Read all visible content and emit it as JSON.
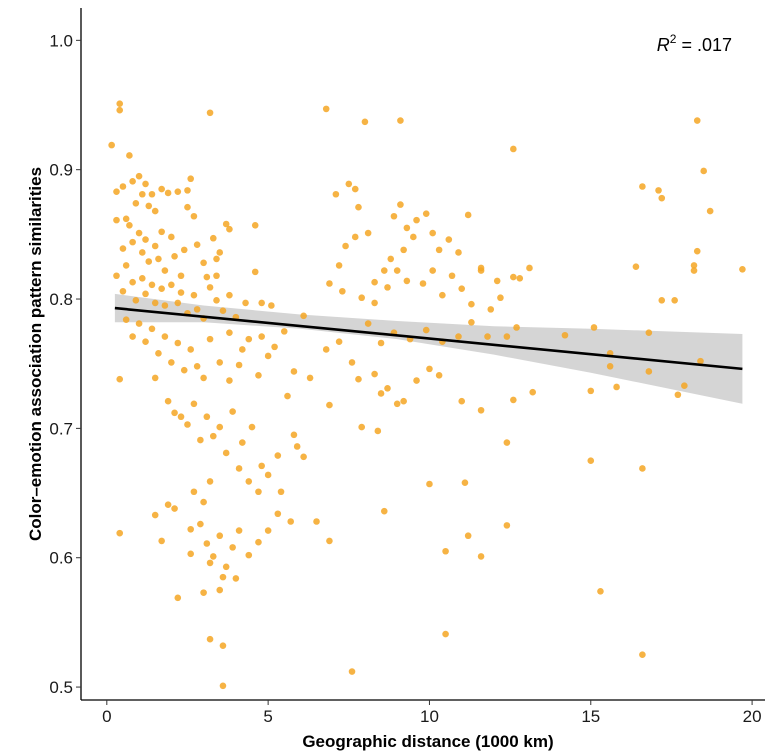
{
  "chart_data": {
    "type": "scatter",
    "xlabel": "Geographic distance (1000 km)",
    "ylabel": "Color–emotion association pattern similarities",
    "xlim": [
      -0.8,
      20.4
    ],
    "ylim": [
      0.49,
      1.025
    ],
    "xticks": [
      0,
      5,
      10,
      15,
      20
    ],
    "xtick_labels": [
      "0",
      "5",
      "10",
      "15",
      "20"
    ],
    "yticks": [
      0.5,
      0.6,
      0.7,
      0.8,
      0.9,
      1.0
    ],
    "ytick_labels": [
      "0.5",
      "0.6",
      "0.7",
      "0.8",
      "0.9",
      "1.0"
    ],
    "annotation": {
      "symbol": "R",
      "superscript": "2",
      "text": " = .017"
    },
    "point_color": "#f5a623",
    "regression": {
      "x": [
        0.25,
        19.7
      ],
      "y": [
        0.793,
        0.746
      ],
      "color": "#000000",
      "ci_color": "#bebebe",
      "ci": [
        {
          "x": 0.25,
          "lo": 0.782,
          "hi": 0.804
        },
        {
          "x": 3.0,
          "lo": 0.782,
          "hi": 0.795
        },
        {
          "x": 6.0,
          "lo": 0.777,
          "hi": 0.788
        },
        {
          "x": 9.0,
          "lo": 0.769,
          "hi": 0.783
        },
        {
          "x": 12.0,
          "lo": 0.757,
          "hi": 0.779
        },
        {
          "x": 15.0,
          "lo": 0.743,
          "hi": 0.777
        },
        {
          "x": 19.7,
          "lo": 0.719,
          "hi": 0.773
        }
      ]
    },
    "grid": false,
    "points": [
      [
        0.15,
        0.919
      ],
      [
        0.4,
        0.951
      ],
      [
        0.4,
        0.946
      ],
      [
        0.7,
        0.911
      ],
      [
        0.3,
        0.883
      ],
      [
        0.5,
        0.887
      ],
      [
        0.6,
        0.862
      ],
      [
        0.3,
        0.861
      ],
      [
        0.8,
        0.891
      ],
      [
        0.9,
        0.874
      ],
      [
        1.0,
        0.895
      ],
      [
        1.1,
        0.881
      ],
      [
        1.2,
        0.889
      ],
      [
        1.3,
        0.872
      ],
      [
        1.4,
        0.881
      ],
      [
        1.5,
        0.868
      ],
      [
        1.7,
        0.885
      ],
      [
        1.9,
        0.882
      ],
      [
        2.2,
        0.883
      ],
      [
        2.6,
        0.893
      ],
      [
        2.5,
        0.871
      ],
      [
        0.5,
        0.839
      ],
      [
        0.7,
        0.857
      ],
      [
        0.8,
        0.844
      ],
      [
        1.0,
        0.851
      ],
      [
        1.1,
        0.836
      ],
      [
        1.2,
        0.846
      ],
      [
        1.3,
        0.829
      ],
      [
        1.5,
        0.841
      ],
      [
        1.6,
        0.831
      ],
      [
        1.7,
        0.852
      ],
      [
        1.8,
        0.822
      ],
      [
        2.0,
        0.848
      ],
      [
        2.1,
        0.833
      ],
      [
        2.3,
        0.818
      ],
      [
        2.4,
        0.838
      ],
      [
        2.7,
        0.864
      ],
      [
        2.8,
        0.842
      ],
      [
        3.0,
        0.828
      ],
      [
        3.1,
        0.817
      ],
      [
        3.3,
        0.847
      ],
      [
        3.5,
        0.836
      ],
      [
        3.7,
        0.858
      ],
      [
        3.4,
        0.818
      ],
      [
        0.3,
        0.818
      ],
      [
        0.5,
        0.806
      ],
      [
        0.6,
        0.826
      ],
      [
        0.8,
        0.813
      ],
      [
        0.9,
        0.799
      ],
      [
        1.1,
        0.816
      ],
      [
        1.2,
        0.804
      ],
      [
        1.4,
        0.811
      ],
      [
        1.5,
        0.797
      ],
      [
        1.7,
        0.808
      ],
      [
        1.8,
        0.795
      ],
      [
        2.0,
        0.811
      ],
      [
        2.2,
        0.797
      ],
      [
        2.3,
        0.805
      ],
      [
        2.5,
        0.789
      ],
      [
        2.7,
        0.803
      ],
      [
        2.8,
        0.792
      ],
      [
        3.0,
        0.785
      ],
      [
        3.2,
        0.809
      ],
      [
        3.4,
        0.799
      ],
      [
        3.6,
        0.791
      ],
      [
        3.8,
        0.803
      ],
      [
        4.0,
        0.786
      ],
      [
        4.3,
        0.797
      ],
      [
        4.6,
        0.821
      ],
      [
        4.8,
        0.797
      ],
      [
        5.1,
        0.795
      ],
      [
        0.6,
        0.784
      ],
      [
        0.8,
        0.771
      ],
      [
        1.0,
        0.781
      ],
      [
        1.2,
        0.767
      ],
      [
        1.4,
        0.777
      ],
      [
        1.6,
        0.758
      ],
      [
        1.8,
        0.771
      ],
      [
        2.0,
        0.751
      ],
      [
        2.2,
        0.766
      ],
      [
        2.4,
        0.745
      ],
      [
        2.6,
        0.761
      ],
      [
        2.8,
        0.748
      ],
      [
        3.0,
        0.739
      ],
      [
        3.2,
        0.769
      ],
      [
        3.5,
        0.751
      ],
      [
        3.8,
        0.737
      ],
      [
        4.1,
        0.749
      ],
      [
        4.4,
        0.769
      ],
      [
        4.7,
        0.741
      ],
      [
        5.0,
        0.756
      ],
      [
        0.4,
        0.738
      ],
      [
        1.5,
        0.739
      ],
      [
        1.9,
        0.721
      ],
      [
        2.1,
        0.712
      ],
      [
        2.3,
        0.709
      ],
      [
        2.5,
        0.703
      ],
      [
        2.7,
        0.719
      ],
      [
        2.9,
        0.691
      ],
      [
        3.1,
        0.709
      ],
      [
        3.3,
        0.694
      ],
      [
        3.5,
        0.701
      ],
      [
        3.7,
        0.681
      ],
      [
        3.9,
        0.713
      ],
      [
        4.2,
        0.689
      ],
      [
        4.5,
        0.701
      ],
      [
        4.8,
        0.671
      ],
      [
        5.3,
        0.679
      ],
      [
        5.6,
        0.725
      ],
      [
        5.8,
        0.695
      ],
      [
        5.9,
        0.686
      ],
      [
        6.1,
        0.678
      ],
      [
        4.1,
        0.669
      ],
      [
        4.4,
        0.659
      ],
      [
        4.7,
        0.651
      ],
      [
        5.0,
        0.664
      ],
      [
        5.4,
        0.651
      ],
      [
        2.7,
        0.651
      ],
      [
        3.0,
        0.643
      ],
      [
        3.2,
        0.659
      ],
      [
        1.9,
        0.641
      ],
      [
        2.1,
        0.638
      ],
      [
        1.5,
        0.633
      ],
      [
        2.6,
        0.622
      ],
      [
        2.9,
        0.626
      ],
      [
        3.1,
        0.611
      ],
      [
        3.3,
        0.601
      ],
      [
        3.5,
        0.617
      ],
      [
        3.7,
        0.593
      ],
      [
        3.9,
        0.608
      ],
      [
        4.1,
        0.621
      ],
      [
        4.4,
        0.602
      ],
      [
        4.7,
        0.612
      ],
      [
        5.0,
        0.621
      ],
      [
        5.3,
        0.634
      ],
      [
        5.7,
        0.628
      ],
      [
        6.5,
        0.628
      ],
      [
        6.9,
        0.613
      ],
      [
        1.7,
        0.613
      ],
      [
        3.2,
        0.596
      ],
      [
        2.6,
        0.603
      ],
      [
        3.5,
        0.575
      ],
      [
        2.2,
        0.569
      ],
      [
        3.6,
        0.585
      ],
      [
        4.0,
        0.584
      ],
      [
        3.0,
        0.573
      ],
      [
        3.2,
        0.537
      ],
      [
        3.6,
        0.532
      ],
      [
        3.6,
        0.501
      ],
      [
        0.4,
        0.619
      ],
      [
        3.2,
        0.944
      ],
      [
        2.5,
        0.884
      ],
      [
        6.8,
        0.947
      ],
      [
        8.0,
        0.937
      ],
      [
        9.1,
        0.938
      ],
      [
        7.5,
        0.889
      ],
      [
        7.1,
        0.881
      ],
      [
        7.7,
        0.885
      ],
      [
        7.8,
        0.871
      ],
      [
        8.1,
        0.851
      ],
      [
        8.9,
        0.864
      ],
      [
        9.1,
        0.873
      ],
      [
        9.3,
        0.855
      ],
      [
        9.6,
        0.861
      ],
      [
        9.5,
        0.848
      ],
      [
        9.9,
        0.866
      ],
      [
        10.1,
        0.851
      ],
      [
        10.3,
        0.838
      ],
      [
        10.6,
        0.846
      ],
      [
        10.9,
        0.836
      ],
      [
        9.2,
        0.838
      ],
      [
        8.8,
        0.831
      ],
      [
        8.6,
        0.822
      ],
      [
        9.0,
        0.822
      ],
      [
        8.3,
        0.813
      ],
      [
        7.7,
        0.848
      ],
      [
        7.4,
        0.841
      ],
      [
        7.2,
        0.826
      ],
      [
        6.9,
        0.812
      ],
      [
        7.3,
        0.806
      ],
      [
        7.9,
        0.801
      ],
      [
        8.3,
        0.797
      ],
      [
        8.7,
        0.809
      ],
      [
        9.3,
        0.814
      ],
      [
        9.8,
        0.812
      ],
      [
        10.1,
        0.822
      ],
      [
        10.4,
        0.803
      ],
      [
        10.7,
        0.818
      ],
      [
        11.0,
        0.808
      ],
      [
        11.3,
        0.796
      ],
      [
        11.6,
        0.822
      ],
      [
        11.9,
        0.792
      ],
      [
        12.2,
        0.801
      ],
      [
        12.6,
        0.817
      ],
      [
        13.1,
        0.824
      ],
      [
        12.7,
        0.778
      ],
      [
        12.4,
        0.771
      ],
      [
        11.8,
        0.771
      ],
      [
        11.3,
        0.782
      ],
      [
        10.9,
        0.771
      ],
      [
        10.4,
        0.767
      ],
      [
        9.9,
        0.776
      ],
      [
        9.4,
        0.769
      ],
      [
        8.9,
        0.774
      ],
      [
        8.5,
        0.766
      ],
      [
        8.1,
        0.781
      ],
      [
        7.6,
        0.751
      ],
      [
        7.2,
        0.767
      ],
      [
        6.8,
        0.761
      ],
      [
        8.3,
        0.742
      ],
      [
        8.7,
        0.731
      ],
      [
        9.2,
        0.721
      ],
      [
        9.6,
        0.737
      ],
      [
        10.0,
        0.746
      ],
      [
        10.3,
        0.741
      ],
      [
        9.0,
        0.719
      ],
      [
        8.5,
        0.727
      ],
      [
        6.9,
        0.718
      ],
      [
        7.8,
        0.738
      ],
      [
        11.6,
        0.714
      ],
      [
        12.6,
        0.722
      ],
      [
        13.2,
        0.728
      ],
      [
        11.0,
        0.721
      ],
      [
        12.4,
        0.689
      ],
      [
        8.4,
        0.698
      ],
      [
        7.9,
        0.701
      ],
      [
        10.0,
        0.657
      ],
      [
        11.1,
        0.658
      ],
      [
        8.6,
        0.636
      ],
      [
        11.2,
        0.617
      ],
      [
        10.5,
        0.605
      ],
      [
        11.6,
        0.601
      ],
      [
        12.4,
        0.625
      ],
      [
        10.5,
        0.541
      ],
      [
        7.6,
        0.512
      ],
      [
        12.6,
        0.916
      ],
      [
        11.2,
        0.865
      ],
      [
        11.6,
        0.824
      ],
      [
        12.1,
        0.814
      ],
      [
        12.8,
        0.816
      ],
      [
        15.1,
        0.778
      ],
      [
        15.6,
        0.758
      ],
      [
        14.2,
        0.772
      ],
      [
        15.6,
        0.748
      ],
      [
        15.8,
        0.732
      ],
      [
        15.0,
        0.729
      ],
      [
        16.4,
        0.825
      ],
      [
        16.6,
        0.887
      ],
      [
        17.1,
        0.884
      ],
      [
        17.2,
        0.878
      ],
      [
        16.8,
        0.774
      ],
      [
        17.2,
        0.799
      ],
      [
        17.6,
        0.799
      ],
      [
        17.7,
        0.726
      ],
      [
        17.9,
        0.733
      ],
      [
        16.8,
        0.744
      ],
      [
        18.2,
        0.826
      ],
      [
        18.3,
        0.837
      ],
      [
        18.5,
        0.899
      ],
      [
        18.3,
        0.938
      ],
      [
        18.7,
        0.868
      ],
      [
        18.2,
        0.822
      ],
      [
        19.7,
        0.823
      ],
      [
        18.4,
        0.752
      ],
      [
        15.0,
        0.675
      ],
      [
        16.6,
        0.669
      ],
      [
        15.3,
        0.574
      ],
      [
        16.6,
        0.525
      ],
      [
        3.8,
        0.854
      ],
      [
        4.6,
        0.857
      ],
      [
        3.4,
        0.831
      ],
      [
        3.8,
        0.774
      ],
      [
        4.2,
        0.761
      ],
      [
        4.8,
        0.771
      ],
      [
        5.5,
        0.775
      ],
      [
        6.1,
        0.787
      ],
      [
        5.2,
        0.763
      ],
      [
        5.8,
        0.744
      ],
      [
        6.3,
        0.739
      ]
    ]
  }
}
